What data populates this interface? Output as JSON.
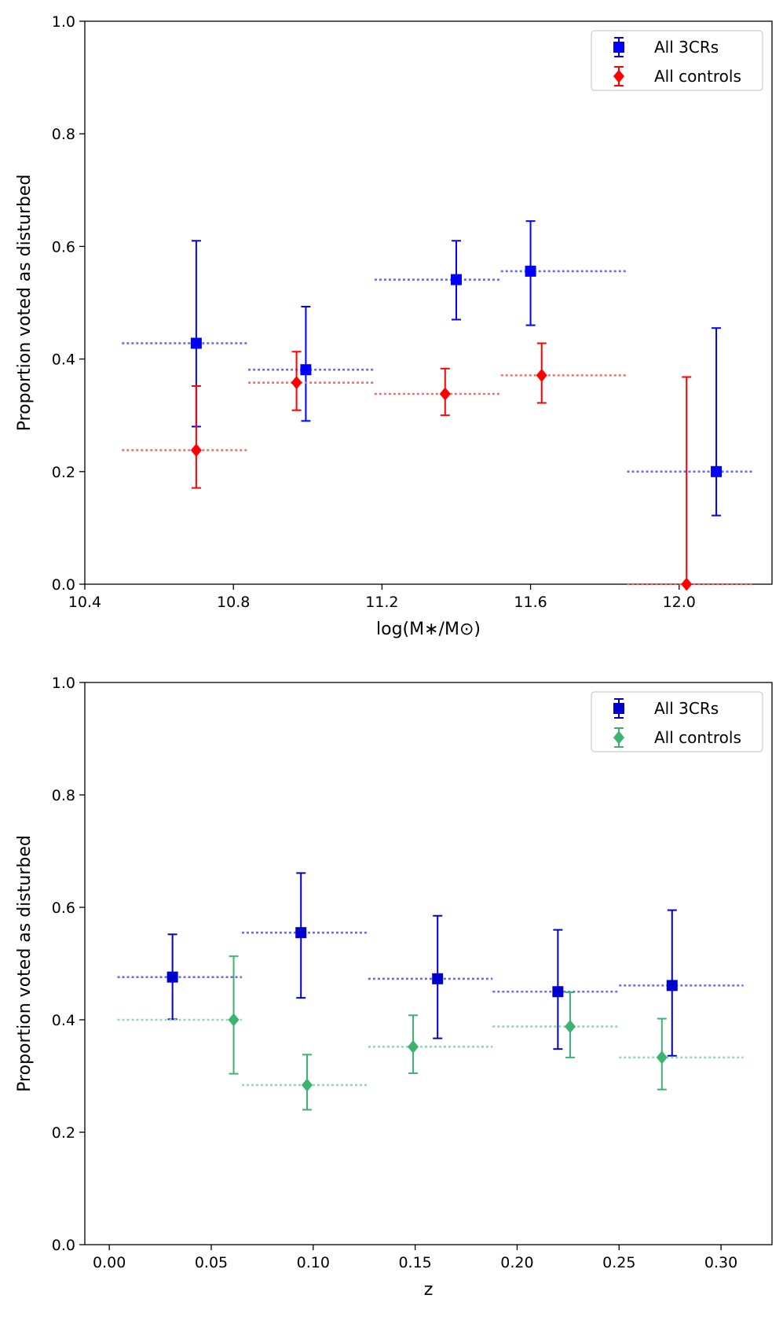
{
  "colors": {
    "blue_3cr": "#0000ff",
    "blue_3cr_dark": "#0000cc",
    "red_controls": "#ff0000",
    "green_controls": "#3cb371",
    "blue_binline": "#6a6aee",
    "red_binline": "#f07070",
    "green_binline": "#94d8b0"
  },
  "chart_data": [
    {
      "type": "scatter",
      "xlabel": "log(M∗/M⊙)",
      "ylabel": "Proportion voted as disturbed",
      "xlim": [
        10.4,
        12.25
      ],
      "ylim": [
        0.0,
        1.0
      ],
      "xticks": [
        "10.4",
        "10.8",
        "11.2",
        "11.6",
        "12.0"
      ],
      "xtick_values": [
        10.4,
        10.8,
        11.2,
        11.6,
        12.0
      ],
      "yticks": [
        "0.0",
        "0.2",
        "0.4",
        "0.6",
        "0.8",
        "1.0"
      ],
      "ytick_values": [
        0.0,
        0.2,
        0.4,
        0.6,
        0.8,
        1.0
      ],
      "legend_position": "top-right",
      "series": [
        {
          "name": "All 3CRs",
          "marker": "square",
          "color_key": "blue_3cr",
          "bin_color_key": "blue_binline",
          "points": [
            {
              "x": 10.7,
              "y": 0.428,
              "ylo": 0.28,
              "yhi": 0.61,
              "bin": [
                10.5,
                10.84
              ]
            },
            {
              "x": 10.995,
              "y": 0.381,
              "ylo": 0.29,
              "yhi": 0.493,
              "bin": [
                10.84,
                11.18
              ]
            },
            {
              "x": 11.4,
              "y": 0.541,
              "ylo": 0.47,
              "yhi": 0.61,
              "bin": [
                11.18,
                11.52
              ]
            },
            {
              "x": 11.6,
              "y": 0.556,
              "ylo": 0.46,
              "yhi": 0.645,
              "bin": [
                11.52,
                11.86
              ]
            },
            {
              "x": 12.1,
              "y": 0.2,
              "ylo": 0.122,
              "yhi": 0.455,
              "bin": [
                11.86,
                12.2
              ]
            }
          ]
        },
        {
          "name": "All controls",
          "marker": "diamond",
          "color_key": "red_controls",
          "bin_color_key": "red_binline",
          "points": [
            {
              "x": 10.7,
              "y": 0.238,
              "ylo": 0.171,
              "yhi": 0.352,
              "bin": [
                10.5,
                10.84
              ]
            },
            {
              "x": 10.97,
              "y": 0.358,
              "ylo": 0.309,
              "yhi": 0.413,
              "bin": [
                10.84,
                11.18
              ]
            },
            {
              "x": 11.37,
              "y": 0.338,
              "ylo": 0.3,
              "yhi": 0.383,
              "bin": [
                11.18,
                11.52
              ]
            },
            {
              "x": 11.63,
              "y": 0.371,
              "ylo": 0.322,
              "yhi": 0.428,
              "bin": [
                11.52,
                11.86
              ]
            },
            {
              "x": 12.02,
              "y": 0.0,
              "ylo": 0.0,
              "yhi": 0.368,
              "bin": [
                11.86,
                12.2
              ]
            }
          ]
        }
      ]
    },
    {
      "type": "scatter",
      "xlabel": "z",
      "ylabel": "Proportion voted as disturbed",
      "xlim": [
        -0.012,
        0.325
      ],
      "ylim": [
        0.0,
        1.0
      ],
      "xticks": [
        "0.00",
        "0.05",
        "0.10",
        "0.15",
        "0.20",
        "0.25",
        "0.30"
      ],
      "xtick_values": [
        0.0,
        0.05,
        0.1,
        0.15,
        0.2,
        0.25,
        0.3
      ],
      "yticks": [
        "0.0",
        "0.2",
        "0.4",
        "0.6",
        "0.8",
        "1.0"
      ],
      "ytick_values": [
        0.0,
        0.2,
        0.4,
        0.6,
        0.8,
        1.0
      ],
      "legend_position": "top-right",
      "series": [
        {
          "name": "All 3CRs",
          "marker": "square",
          "color_key": "blue_3cr_dark",
          "bin_color_key": "blue_binline",
          "points": [
            {
              "x": 0.031,
              "y": 0.476,
              "ylo": 0.401,
              "yhi": 0.552,
              "bin": [
                0.004,
                0.065
              ]
            },
            {
              "x": 0.094,
              "y": 0.555,
              "ylo": 0.439,
              "yhi": 0.661,
              "bin": [
                0.065,
                0.127
              ]
            },
            {
              "x": 0.161,
              "y": 0.473,
              "ylo": 0.367,
              "yhi": 0.585,
              "bin": [
                0.127,
                0.188
              ]
            },
            {
              "x": 0.22,
              "y": 0.45,
              "ylo": 0.348,
              "yhi": 0.56,
              "bin": [
                0.188,
                0.25
              ]
            },
            {
              "x": 0.276,
              "y": 0.461,
              "ylo": 0.336,
              "yhi": 0.595,
              "bin": [
                0.25,
                0.311
              ]
            }
          ]
        },
        {
          "name": "All controls",
          "marker": "diamond",
          "color_key": "green_controls",
          "bin_color_key": "green_binline",
          "points": [
            {
              "x": 0.061,
              "y": 0.4,
              "ylo": 0.304,
              "yhi": 0.513,
              "bin": [
                0.004,
                0.065
              ]
            },
            {
              "x": 0.097,
              "y": 0.284,
              "ylo": 0.24,
              "yhi": 0.338,
              "bin": [
                0.065,
                0.127
              ]
            },
            {
              "x": 0.149,
              "y": 0.352,
              "ylo": 0.305,
              "yhi": 0.408,
              "bin": [
                0.127,
                0.188
              ]
            },
            {
              "x": 0.226,
              "y": 0.388,
              "ylo": 0.333,
              "yhi": 0.449,
              "bin": [
                0.188,
                0.25
              ]
            },
            {
              "x": 0.271,
              "y": 0.333,
              "ylo": 0.276,
              "yhi": 0.402,
              "bin": [
                0.25,
                0.311
              ]
            }
          ]
        }
      ]
    }
  ]
}
